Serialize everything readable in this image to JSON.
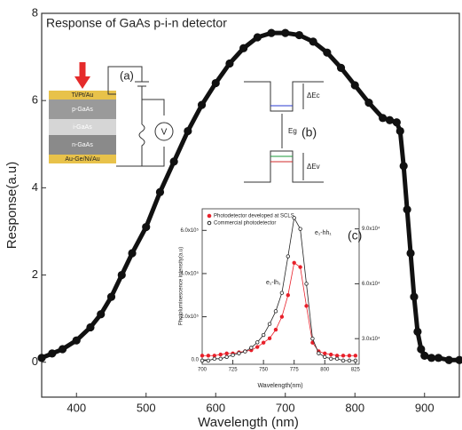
{
  "chart_data": [
    {
      "type": "scatter",
      "title": "Response of GaAs p-i-n detector",
      "x_label": "Wavelength (nm)",
      "y_label": "Response(a.u)",
      "xlim": [
        350,
        950
      ],
      "ylim": [
        -0.8,
        8
      ],
      "xticks": [
        400,
        500,
        600,
        700,
        800,
        900
      ],
      "yticks": [
        0,
        2,
        4,
        6,
        8
      ],
      "marker": "filled",
      "series": [
        {
          "color": "#111111",
          "x": [
            350,
            365,
            380,
            400,
            420,
            435,
            450,
            465,
            480,
            500,
            520,
            540,
            560,
            580,
            600,
            620,
            640,
            660,
            680,
            700,
            720,
            740,
            760,
            780,
            800,
            820,
            840,
            850,
            860,
            865,
            870,
            875,
            880,
            885,
            890,
            895,
            900,
            910,
            920,
            935,
            950
          ],
          "values": [
            0.1,
            0.2,
            0.3,
            0.5,
            0.8,
            1.1,
            1.5,
            2.0,
            2.5,
            3.1,
            3.9,
            4.6,
            5.3,
            5.9,
            6.4,
            6.85,
            7.2,
            7.45,
            7.55,
            7.55,
            7.5,
            7.35,
            7.1,
            6.75,
            6.35,
            5.95,
            5.6,
            5.55,
            5.5,
            5.3,
            4.5,
            3.5,
            2.5,
            1.5,
            0.7,
            0.3,
            0.15,
            0.1,
            0.1,
            0.05,
            0.05
          ]
        }
      ]
    },
    {
      "type": "scatter",
      "label": "(c)",
      "x_label": "Wavelength(nm)",
      "y_label": "Photoluminescence intensity(a.u)",
      "xlim": [
        700,
        828
      ],
      "ylim": [
        -0.2,
        7
      ],
      "y2lim": [
        1.6,
        10.1
      ],
      "xticks": [
        700,
        725,
        750,
        775,
        800,
        825
      ],
      "yticks": [
        {
          "value": 0,
          "label": "0.0"
        },
        {
          "value": 2,
          "label": "2.0x10⁵"
        },
        {
          "value": 4,
          "label": "4.0x10⁵"
        },
        {
          "value": 6,
          "label": "6.0x10⁵"
        }
      ],
      "y2ticks": [
        {
          "value": 3,
          "label": "3.0x10⁴"
        },
        {
          "value": 6,
          "label": "6.0x10⁴"
        },
        {
          "value": 9,
          "label": "9.0x10⁴"
        }
      ],
      "annotations": [
        "e₁-hh₁",
        "e₁-lh₁"
      ],
      "x": [
        700,
        705,
        710,
        715,
        720,
        725,
        730,
        735,
        740,
        745,
        750,
        755,
        760,
        765,
        770,
        775,
        780,
        785,
        790,
        795,
        800,
        805,
        810,
        815,
        820,
        825
      ],
      "series": [
        {
          "name": "Photodetector developed at SCLS",
          "color": "#e8202a",
          "marker": "filled",
          "values": [
            0.2,
            0.2,
            0.2,
            0.25,
            0.3,
            0.3,
            0.35,
            0.4,
            0.45,
            0.6,
            0.8,
            1.0,
            1.4,
            2.0,
            3.0,
            4.5,
            4.3,
            2.5,
            0.8,
            0.4,
            0.3,
            0.25,
            0.2,
            0.2,
            0.2,
            0.2
          ]
        },
        {
          "name": "Commercial photodetector",
          "color": "#222222",
          "marker": "open",
          "axis": "y2",
          "values": [
            1.8,
            1.8,
            1.9,
            1.9,
            2.0,
            2.1,
            2.2,
            2.3,
            2.5,
            2.8,
            3.2,
            3.8,
            4.5,
            5.5,
            7.5,
            9.6,
            9.0,
            6.0,
            3.0,
            2.2,
            2.0,
            1.9,
            1.9,
            1.8,
            1.8,
            1.8
          ]
        }
      ]
    }
  ],
  "inset_a": {
    "label": "(a)",
    "layers": [
      "Ti/Pt/Au",
      "p-GaAs",
      "i-GaAs",
      "n-GaAs",
      "Au-Ge/Ni/Au"
    ],
    "meter": "V"
  },
  "inset_b": {
    "label": "(b)",
    "gap": "Eg",
    "dEc": "ΔEc",
    "dEv": "ΔEv"
  }
}
